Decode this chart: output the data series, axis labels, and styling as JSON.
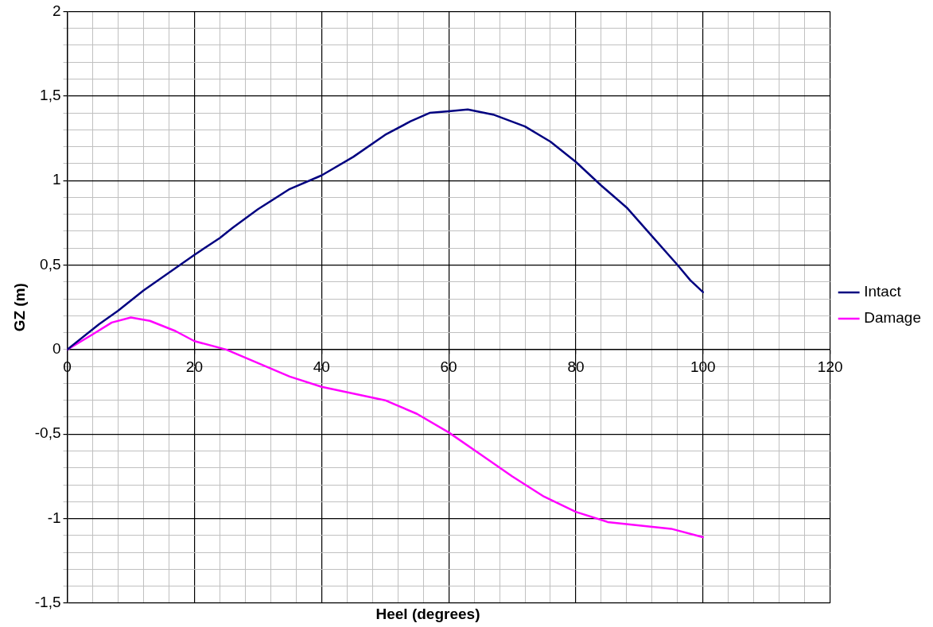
{
  "chart_data": {
    "type": "line",
    "xlabel": "Heel (degrees)",
    "ylabel": "GZ (m)",
    "xlim": [
      0,
      120
    ],
    "ylim": [
      -1.5,
      2
    ],
    "xticks": [
      0,
      {
        "value": 4,
        "label": null
      },
      {
        "value": 8,
        "label": null
      },
      {
        "value": 12,
        "label": null
      },
      {
        "value": 16,
        "label": null
      },
      20,
      {
        "value": 24,
        "label": null
      },
      {
        "value": 28,
        "label": null
      },
      {
        "value": 32,
        "label": null
      },
      {
        "value": 36,
        "label": null
      },
      40,
      {
        "value": 44,
        "label": null
      },
      {
        "value": 48,
        "label": null
      },
      {
        "value": 52,
        "label": null
      },
      {
        "value": 56,
        "label": null
      },
      60,
      {
        "value": 64,
        "label": null
      },
      {
        "value": 68,
        "label": null
      },
      {
        "value": 72,
        "label": null
      },
      {
        "value": 76,
        "label": null
      },
      80,
      {
        "value": 84,
        "label": null
      },
      {
        "value": 88,
        "label": null
      },
      {
        "value": 92,
        "label": null
      },
      {
        "value": 96,
        "label": null
      },
      100,
      {
        "value": 104,
        "label": null
      },
      {
        "value": 108,
        "label": null
      },
      {
        "value": 112,
        "label": null
      },
      {
        "value": 116,
        "label": null
      },
      120
    ],
    "yticks": [
      {
        "value": -1.5,
        "label": "-1,5"
      },
      {
        "value": -1.4,
        "label": null
      },
      {
        "value": -1.3,
        "label": null
      },
      {
        "value": -1.2,
        "label": null
      },
      {
        "value": -1.1,
        "label": null
      },
      -1,
      {
        "value": -0.9,
        "label": null
      },
      {
        "value": -0.8,
        "label": null
      },
      {
        "value": -0.7,
        "label": null
      },
      {
        "value": -0.6,
        "label": null
      },
      {
        "value": -0.5,
        "label": "-0,5"
      },
      {
        "value": -0.4,
        "label": null
      },
      {
        "value": -0.3,
        "label": null
      },
      {
        "value": -0.2,
        "label": null
      },
      {
        "value": -0.1,
        "label": null
      },
      0,
      {
        "value": 0.1,
        "label": null
      },
      {
        "value": 0.2,
        "label": null
      },
      {
        "value": 0.3,
        "label": null
      },
      {
        "value": 0.4,
        "label": null
      },
      {
        "value": 0.5,
        "label": "0,5"
      },
      {
        "value": 0.6,
        "label": null
      },
      {
        "value": 0.7,
        "label": null
      },
      {
        "value": 0.8,
        "label": null
      },
      {
        "value": 0.9,
        "label": null
      },
      1,
      {
        "value": 1.1,
        "label": null
      },
      {
        "value": 1.2,
        "label": null
      },
      {
        "value": 1.3,
        "label": null
      },
      {
        "value": 1.4,
        "label": null
      },
      {
        "value": 1.5,
        "label": "1,5"
      },
      {
        "value": 1.6,
        "label": null
      },
      {
        "value": 1.7,
        "label": null
      },
      {
        "value": 1.8,
        "label": null
      },
      {
        "value": 1.9,
        "label": null
      },
      2
    ],
    "grid": true,
    "legend": "right",
    "marker": "none",
    "line_style": "solid",
    "series": [
      {
        "name": "Intact",
        "color": "#000080",
        "x": [
          0,
          5,
          8,
          12,
          20,
          24,
          26,
          30,
          35,
          40,
          45,
          50,
          54,
          57,
          60,
          63,
          67,
          72,
          76,
          80,
          84,
          88,
          92,
          96,
          98,
          100
        ],
        "values": [
          0,
          0.15,
          0.23,
          0.35,
          0.56,
          0.66,
          0.72,
          0.83,
          0.95,
          1.03,
          1.14,
          1.27,
          1.35,
          1.4,
          1.41,
          1.42,
          1.39,
          1.32,
          1.23,
          1.11,
          0.97,
          0.84,
          0.67,
          0.5,
          0.41,
          0.34
        ]
      },
      {
        "name": "Damage",
        "color": "#ff00ff",
        "x": [
          0,
          4,
          7,
          10,
          13,
          17,
          20,
          25,
          30,
          35,
          40,
          45,
          50,
          55,
          60,
          65,
          70,
          75,
          80,
          85,
          90,
          95,
          100
        ],
        "values": [
          0,
          0.09,
          0.16,
          0.19,
          0.17,
          0.11,
          0.05,
          0,
          -0.08,
          -0.16,
          -0.22,
          -0.26,
          -0.3,
          -0.38,
          -0.49,
          -0.62,
          -0.75,
          -0.87,
          -0.96,
          -1.02,
          -1.04,
          -1.06,
          -1.11
        ]
      }
    ]
  }
}
